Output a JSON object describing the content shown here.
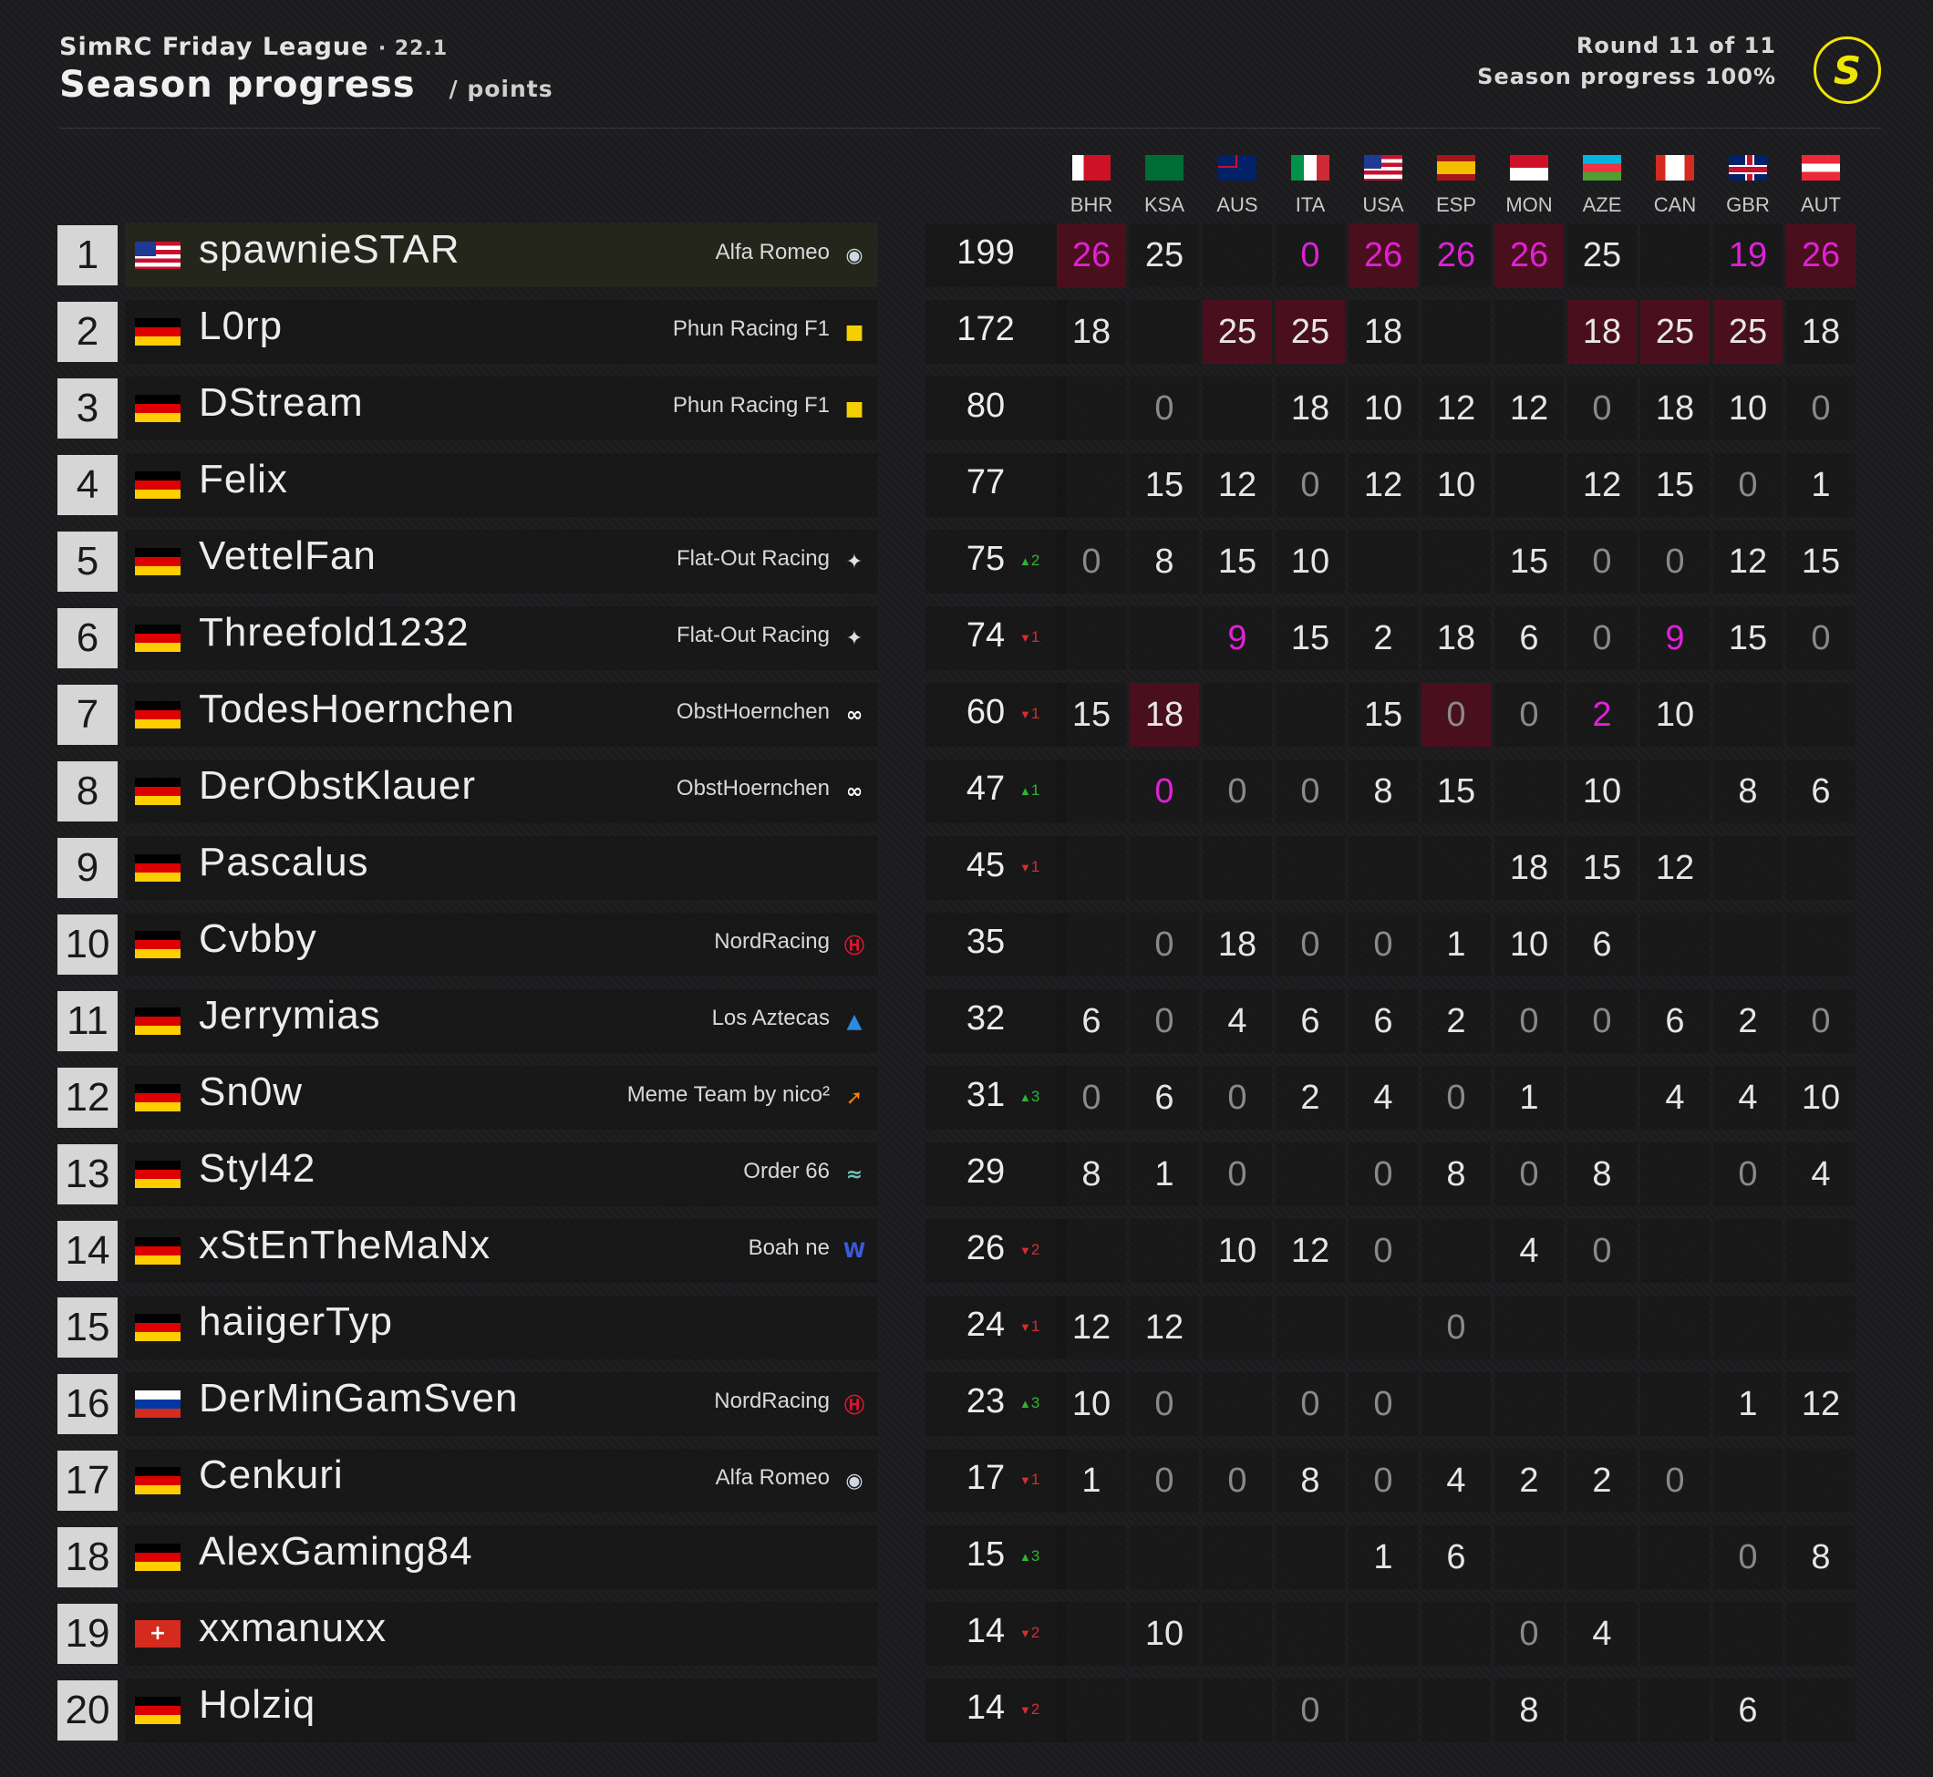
{
  "header": {
    "league": "SimRC Friday League",
    "version": "· 22.1",
    "title": "Season progress",
    "subtitle": "/ points",
    "round": "Round 11 of 11",
    "progress": "Season progress 100%",
    "logo": "S"
  },
  "colors": {
    "highlight_bg": "#4a0f1d",
    "magenta": "#e021d6",
    "accent_yellow": "#f0e500",
    "up": "#2fb52f",
    "down": "#d32f2f"
  },
  "countries": [
    "BHR",
    "KSA",
    "AUS",
    "ITA",
    "USA",
    "ESP",
    "MON",
    "AZE",
    "CAN",
    "GBR",
    "AUT"
  ],
  "rows": [
    {
      "pos": "1",
      "flag": "usa",
      "name": "spawnieSTAR",
      "team": "Alfa Romeo",
      "team_icon": "alfa-romeo-icon",
      "total": "199",
      "delta": "",
      "delta_dir": "",
      "cells": [
        {
          "v": "26",
          "hl": true,
          "mag": true
        },
        {
          "v": "25"
        },
        {
          "v": ""
        },
        {
          "v": "0",
          "mag": true
        },
        {
          "v": "26",
          "hl": true,
          "mag": true
        },
        {
          "v": "26",
          "mag": true
        },
        {
          "v": "26",
          "hl": true,
          "mag": true
        },
        {
          "v": "25"
        },
        {
          "v": ""
        },
        {
          "v": "19",
          "mag": true
        },
        {
          "v": "26",
          "hl": true,
          "mag": true
        }
      ]
    },
    {
      "pos": "2",
      "flag": "ger",
      "name": "L0rp",
      "team": "Phun Racing F1",
      "team_icon": "ferrari-icon",
      "total": "172",
      "delta": "",
      "delta_dir": "",
      "cells": [
        {
          "v": "18"
        },
        {
          "v": ""
        },
        {
          "v": "25",
          "hl": true
        },
        {
          "v": "25",
          "hl": true
        },
        {
          "v": "18"
        },
        {
          "v": ""
        },
        {
          "v": ""
        },
        {
          "v": "18",
          "hl": true
        },
        {
          "v": "25",
          "hl": true
        },
        {
          "v": "25",
          "hl": true
        },
        {
          "v": "18"
        }
      ]
    },
    {
      "pos": "3",
      "flag": "ger",
      "name": "DStream",
      "team": "Phun Racing F1",
      "team_icon": "ferrari-icon",
      "total": "80",
      "delta": "",
      "delta_dir": "",
      "cells": [
        {
          "v": ""
        },
        {
          "v": "0"
        },
        {
          "v": ""
        },
        {
          "v": "18"
        },
        {
          "v": "10"
        },
        {
          "v": "12"
        },
        {
          "v": "12"
        },
        {
          "v": "0"
        },
        {
          "v": "18"
        },
        {
          "v": "10"
        },
        {
          "v": "0"
        }
      ]
    },
    {
      "pos": "4",
      "flag": "ger",
      "name": "Felix",
      "team": "",
      "team_icon": "",
      "total": "77",
      "delta": "",
      "delta_dir": "",
      "cells": [
        {
          "v": ""
        },
        {
          "v": "15"
        },
        {
          "v": "12"
        },
        {
          "v": "0"
        },
        {
          "v": "12"
        },
        {
          "v": "10"
        },
        {
          "v": ""
        },
        {
          "v": "12"
        },
        {
          "v": "15"
        },
        {
          "v": "0"
        },
        {
          "v": "1"
        }
      ]
    },
    {
      "pos": "5",
      "flag": "ger",
      "name": "VettelFan",
      "team": "Flat-Out Racing",
      "team_icon": "mercedes-icon",
      "total": "75",
      "delta": "^2",
      "delta_dir": "up",
      "cells": [
        {
          "v": "0"
        },
        {
          "v": "8"
        },
        {
          "v": "15"
        },
        {
          "v": "10"
        },
        {
          "v": ""
        },
        {
          "v": ""
        },
        {
          "v": "15"
        },
        {
          "v": "0"
        },
        {
          "v": "0"
        },
        {
          "v": "12"
        },
        {
          "v": "15"
        }
      ]
    },
    {
      "pos": "6",
      "flag": "ger",
      "name": "Threefold1232",
      "team": "Flat-Out Racing",
      "team_icon": "mercedes-icon",
      "total": "74",
      "delta": "v1",
      "delta_dir": "down",
      "cells": [
        {
          "v": ""
        },
        {
          "v": ""
        },
        {
          "v": "9",
          "mag": true
        },
        {
          "v": "15"
        },
        {
          "v": "2"
        },
        {
          "v": "18"
        },
        {
          "v": "6"
        },
        {
          "v": "0"
        },
        {
          "v": "9",
          "mag": true
        },
        {
          "v": "15"
        },
        {
          "v": "0"
        }
      ]
    },
    {
      "pos": "7",
      "flag": "ger",
      "name": "TodesHoernchen",
      "team": "ObstHoernchen",
      "team_icon": "alphatauri-icon",
      "total": "60",
      "delta": "v1",
      "delta_dir": "down",
      "cells": [
        {
          "v": "15"
        },
        {
          "v": "18",
          "hl": true
        },
        {
          "v": ""
        },
        {
          "v": ""
        },
        {
          "v": "15"
        },
        {
          "v": "0",
          "hl": true
        },
        {
          "v": "0"
        },
        {
          "v": "2",
          "mag": true
        },
        {
          "v": "10"
        },
        {
          "v": ""
        },
        {
          "v": ""
        }
      ]
    },
    {
      "pos": "8",
      "flag": "ger",
      "name": "DerObstKlauer",
      "team": "ObstHoernchen",
      "team_icon": "alphatauri-icon",
      "total": "47",
      "delta": "^1",
      "delta_dir": "up",
      "cells": [
        {
          "v": ""
        },
        {
          "v": "0",
          "mag": true
        },
        {
          "v": "0"
        },
        {
          "v": "0"
        },
        {
          "v": "8"
        },
        {
          "v": "15"
        },
        {
          "v": ""
        },
        {
          "v": "10"
        },
        {
          "v": ""
        },
        {
          "v": "8"
        },
        {
          "v": "6"
        }
      ]
    },
    {
      "pos": "9",
      "flag": "ger",
      "name": "Pascalus",
      "team": "",
      "team_icon": "",
      "total": "45",
      "delta": "v1",
      "delta_dir": "down",
      "cells": [
        {
          "v": ""
        },
        {
          "v": ""
        },
        {
          "v": ""
        },
        {
          "v": ""
        },
        {
          "v": ""
        },
        {
          "v": ""
        },
        {
          "v": "18"
        },
        {
          "v": "15"
        },
        {
          "v": "12"
        },
        {
          "v": ""
        },
        {
          "v": ""
        }
      ]
    },
    {
      "pos": "10",
      "flag": "ger",
      "name": "Cvbby",
      "team": "NordRacing",
      "team_icon": "haas-icon",
      "total": "35",
      "delta": "",
      "delta_dir": "",
      "cells": [
        {
          "v": ""
        },
        {
          "v": "0"
        },
        {
          "v": "18"
        },
        {
          "v": "0"
        },
        {
          "v": "0"
        },
        {
          "v": "1"
        },
        {
          "v": "10"
        },
        {
          "v": "6"
        },
        {
          "v": ""
        },
        {
          "v": ""
        },
        {
          "v": ""
        }
      ]
    },
    {
      "pos": "11",
      "flag": "ger",
      "name": "Jerrymias",
      "team": "Los Aztecas",
      "team_icon": "alpine-icon",
      "total": "32",
      "delta": "",
      "delta_dir": "",
      "cells": [
        {
          "v": "6"
        },
        {
          "v": "0"
        },
        {
          "v": "4"
        },
        {
          "v": "6"
        },
        {
          "v": "6"
        },
        {
          "v": "2"
        },
        {
          "v": "0"
        },
        {
          "v": "0"
        },
        {
          "v": "6"
        },
        {
          "v": "2"
        },
        {
          "v": "0"
        }
      ]
    },
    {
      "pos": "12",
      "flag": "ger",
      "name": "Sn0w",
      "team": "Meme Team by nico²",
      "team_icon": "mclaren-icon",
      "total": "31",
      "delta": "^3",
      "delta_dir": "up",
      "cells": [
        {
          "v": "0"
        },
        {
          "v": "6"
        },
        {
          "v": "0"
        },
        {
          "v": "2"
        },
        {
          "v": "4"
        },
        {
          "v": "0"
        },
        {
          "v": "1"
        },
        {
          "v": ""
        },
        {
          "v": "4"
        },
        {
          "v": "4"
        },
        {
          "v": "10"
        }
      ]
    },
    {
      "pos": "13",
      "flag": "ger",
      "name": "Styl42",
      "team": "Order 66",
      "team_icon": "aston-martin-icon",
      "total": "29",
      "delta": "",
      "delta_dir": "",
      "cells": [
        {
          "v": "8"
        },
        {
          "v": "1"
        },
        {
          "v": "0"
        },
        {
          "v": ""
        },
        {
          "v": "0"
        },
        {
          "v": "8"
        },
        {
          "v": "0"
        },
        {
          "v": "8"
        },
        {
          "v": ""
        },
        {
          "v": "0"
        },
        {
          "v": "4"
        }
      ]
    },
    {
      "pos": "14",
      "flag": "ger",
      "name": "xStEnTheMaNx",
      "team": "Boah ne",
      "team_icon": "williams-icon",
      "total": "26",
      "delta": "v2",
      "delta_dir": "down",
      "cells": [
        {
          "v": ""
        },
        {
          "v": ""
        },
        {
          "v": "10"
        },
        {
          "v": "12"
        },
        {
          "v": "0"
        },
        {
          "v": ""
        },
        {
          "v": "4"
        },
        {
          "v": "0"
        },
        {
          "v": ""
        },
        {
          "v": ""
        },
        {
          "v": ""
        }
      ]
    },
    {
      "pos": "15",
      "flag": "ger",
      "name": "haiigerTyp",
      "team": "",
      "team_icon": "",
      "total": "24",
      "delta": "v1",
      "delta_dir": "down",
      "cells": [
        {
          "v": "12"
        },
        {
          "v": "12"
        },
        {
          "v": ""
        },
        {
          "v": ""
        },
        {
          "v": ""
        },
        {
          "v": "0"
        },
        {
          "v": ""
        },
        {
          "v": ""
        },
        {
          "v": ""
        },
        {
          "v": ""
        },
        {
          "v": ""
        }
      ]
    },
    {
      "pos": "16",
      "flag": "rus",
      "name": "DerMinGamSven",
      "team": "NordRacing",
      "team_icon": "haas-icon",
      "total": "23",
      "delta": "^3",
      "delta_dir": "up",
      "cells": [
        {
          "v": "10"
        },
        {
          "v": "0"
        },
        {
          "v": ""
        },
        {
          "v": "0"
        },
        {
          "v": "0"
        },
        {
          "v": ""
        },
        {
          "v": ""
        },
        {
          "v": ""
        },
        {
          "v": ""
        },
        {
          "v": "1"
        },
        {
          "v": "12"
        }
      ]
    },
    {
      "pos": "17",
      "flag": "ger",
      "name": "Cenkuri",
      "team": "Alfa Romeo",
      "team_icon": "alfa-romeo-icon",
      "total": "17",
      "delta": "v1",
      "delta_dir": "down",
      "cells": [
        {
          "v": "1"
        },
        {
          "v": "0"
        },
        {
          "v": "0"
        },
        {
          "v": "8"
        },
        {
          "v": "0"
        },
        {
          "v": "4"
        },
        {
          "v": "2"
        },
        {
          "v": "2"
        },
        {
          "v": "0"
        },
        {
          "v": ""
        },
        {
          "v": ""
        }
      ]
    },
    {
      "pos": "18",
      "flag": "ger",
      "name": "AlexGaming84",
      "team": "",
      "team_icon": "",
      "total": "15",
      "delta": "^3",
      "delta_dir": "up",
      "cells": [
        {
          "v": ""
        },
        {
          "v": ""
        },
        {
          "v": ""
        },
        {
          "v": ""
        },
        {
          "v": "1"
        },
        {
          "v": "6"
        },
        {
          "v": ""
        },
        {
          "v": ""
        },
        {
          "v": ""
        },
        {
          "v": "0"
        },
        {
          "v": "8"
        }
      ]
    },
    {
      "pos": "19",
      "flag": "sui",
      "name": "xxmanuxx",
      "team": "",
      "team_icon": "",
      "total": "14",
      "delta": "v2",
      "delta_dir": "down",
      "cells": [
        {
          "v": ""
        },
        {
          "v": "10"
        },
        {
          "v": ""
        },
        {
          "v": ""
        },
        {
          "v": ""
        },
        {
          "v": ""
        },
        {
          "v": "0"
        },
        {
          "v": "4"
        },
        {
          "v": ""
        },
        {
          "v": ""
        },
        {
          "v": ""
        }
      ]
    },
    {
      "pos": "20",
      "flag": "ger",
      "name": "Holziq",
      "team": "",
      "team_icon": "",
      "total": "14",
      "delta": "v2",
      "delta_dir": "down",
      "cells": [
        {
          "v": ""
        },
        {
          "v": ""
        },
        {
          "v": ""
        },
        {
          "v": "0"
        },
        {
          "v": ""
        },
        {
          "v": ""
        },
        {
          "v": "8"
        },
        {
          "v": ""
        },
        {
          "v": ""
        },
        {
          "v": "6"
        },
        {
          "v": ""
        }
      ]
    }
  ]
}
